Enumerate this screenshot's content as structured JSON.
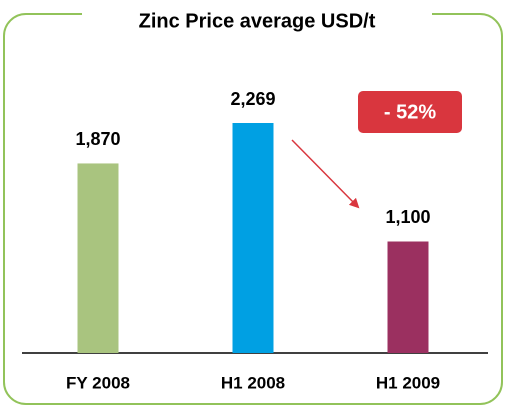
{
  "chart_data": {
    "type": "bar",
    "title": "Zinc Price average USD/t",
    "categories": [
      "FY 2008",
      "H1 2008",
      "H1 2009"
    ],
    "values": [
      1870,
      2269,
      1100
    ],
    "value_labels": [
      "1,870",
      "2,269",
      "1,100"
    ],
    "colors": [
      "#a9c47f",
      "#00a0e3",
      "#9b3060"
    ],
    "annotation": "- 52%"
  }
}
